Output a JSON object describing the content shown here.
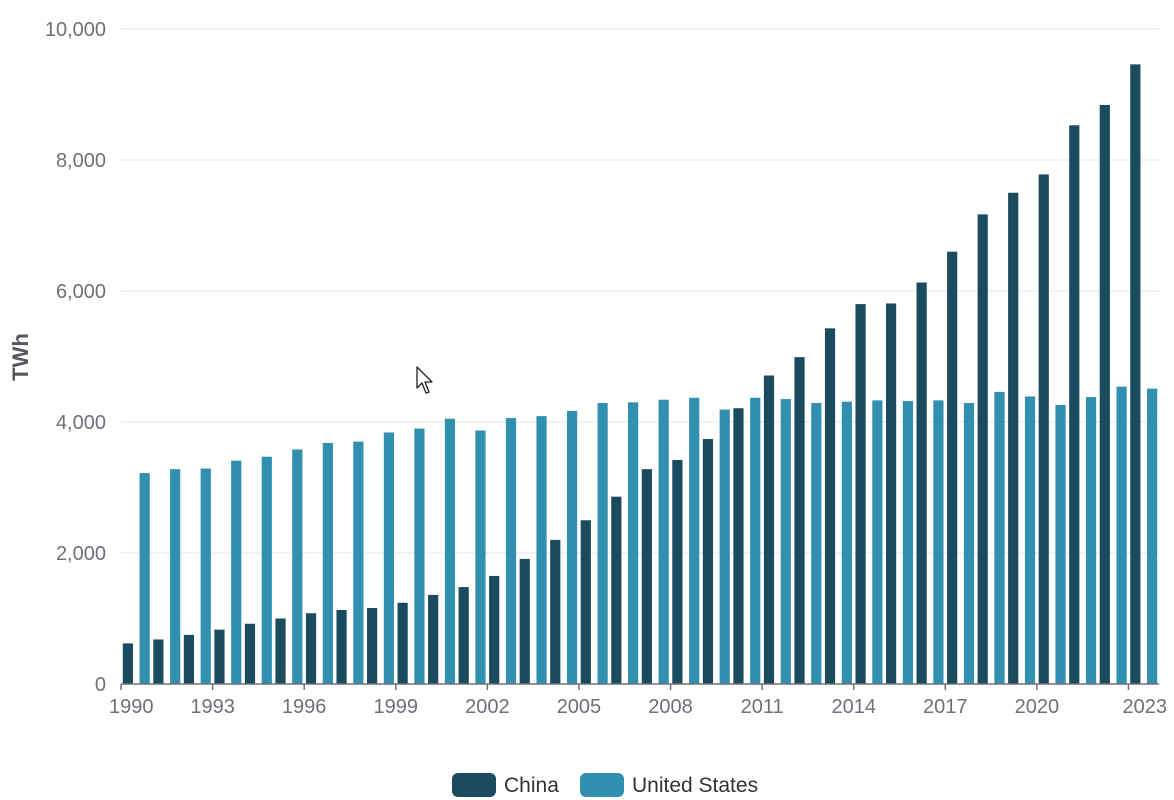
{
  "chart_data": {
    "type": "bar",
    "title": "",
    "xlabel": "",
    "ylabel": "TWh",
    "ylim": [
      0,
      10000
    ],
    "y_ticks": [
      0,
      2000,
      4000,
      6000,
      8000,
      10000
    ],
    "y_tick_labels": [
      "0",
      "2,000",
      "4,000",
      "6,000",
      "8,000",
      "10,000"
    ],
    "x_tick_labels": [
      "1990",
      "1993",
      "1996",
      "1999",
      "2002",
      "2005",
      "2008",
      "2011",
      "2014",
      "2017",
      "2020",
      "2023"
    ],
    "grid": true,
    "legend_position": "bottom-center",
    "categories": [
      "1990",
      "1991",
      "1992",
      "1993",
      "1994",
      "1995",
      "1996",
      "1997",
      "1998",
      "1999",
      "2000",
      "2001",
      "2002",
      "2003",
      "2004",
      "2005",
      "2006",
      "2007",
      "2008",
      "2009",
      "2010",
      "2011",
      "2012",
      "2013",
      "2014",
      "2015",
      "2016",
      "2017",
      "2018",
      "2019",
      "2020",
      "2021",
      "2022",
      "2023"
    ],
    "series": [
      {
        "name": "China",
        "color": "#1b4b5e",
        "values": [
          620,
          680,
          750,
          830,
          920,
          1000,
          1080,
          1130,
          1160,
          1240,
          1360,
          1480,
          1650,
          1910,
          2200,
          2500,
          2860,
          3280,
          3420,
          3740,
          4210,
          4710,
          4990,
          5430,
          5800,
          5810,
          6130,
          6600,
          7170,
          7500,
          7780,
          8530,
          8840,
          9460
        ]
      },
      {
        "name": "United States",
        "color": "#318fb0",
        "values": [
          3220,
          3280,
          3290,
          3410,
          3470,
          3580,
          3680,
          3700,
          3840,
          3900,
          4050,
          3870,
          4060,
          4090,
          4170,
          4290,
          4300,
          4340,
          4370,
          4190,
          4370,
          4350,
          4290,
          4310,
          4330,
          4320,
          4330,
          4290,
          4460,
          4390,
          4260,
          4380,
          4540,
          4510
        ]
      }
    ]
  }
}
